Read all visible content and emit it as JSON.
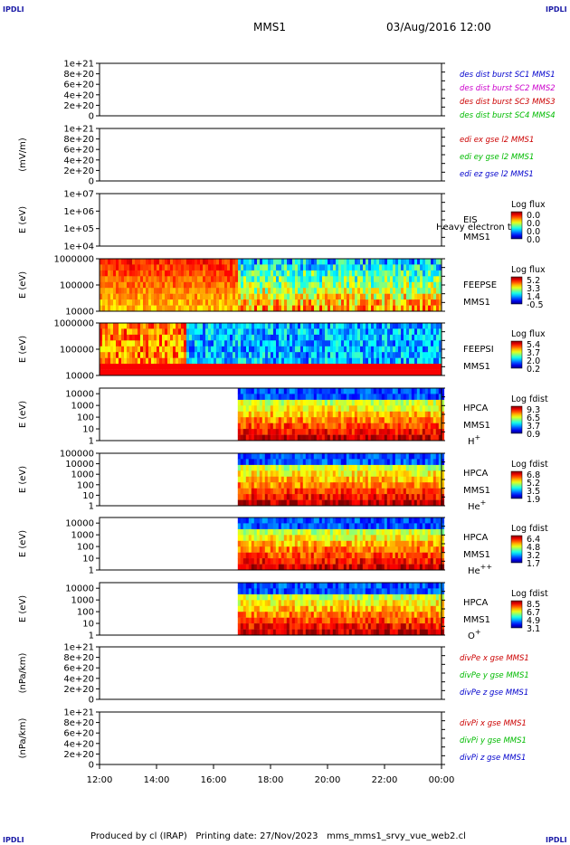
{
  "corners": {
    "tl": "IPDLI",
    "tr": "IPDLI",
    "bl": "IPDLI",
    "br": "IPDLI"
  },
  "header": {
    "mission": "MMS1",
    "datetime": "03/Aug/2016 12:00"
  },
  "footer": {
    "producer": "Produced by cl (IRAP)",
    "printing": "Printing date: 27/Nov/2023",
    "script": "mms_mms1_srvy_vue_web2.cl"
  },
  "colors": {
    "black": "#000000",
    "blue": "#0000cc",
    "magenta": "#cc00cc",
    "red": "#cc0000",
    "green": "#00bb00",
    "dashed": "#000000"
  },
  "chart_data": [
    {
      "type": "line",
      "ylabel": "",
      "y_ticks": [
        "0",
        "2e+20",
        "4e+20",
        "6e+20",
        "8e+20",
        "1e+21"
      ],
      "ylim": [
        0,
        1e+21
      ],
      "legend": [
        {
          "text": "des dist burst SC1 MMS1",
          "color": "#0000cc"
        },
        {
          "text": "des dist burst SC2 MMS2",
          "color": "#cc00cc"
        },
        {
          "text": "des dist burst SC3 MMS3",
          "color": "#cc0000"
        },
        {
          "text": "des dist burst SC4 MMS4",
          "color": "#00bb00"
        }
      ],
      "series": []
    },
    {
      "type": "line",
      "ylabel": "(mV/m)",
      "y_ticks": [
        "0",
        "2e+20",
        "4e+20",
        "6e+20",
        "8e+20",
        "1e+21"
      ],
      "ylim": [
        0,
        1e+21
      ],
      "legend": [
        {
          "text": "edi ex gse l2 MMS1",
          "color": "#cc0000"
        },
        {
          "text": "edi ey gse l2 MMS1",
          "color": "#00bb00"
        },
        {
          "text": "edi ez gse l2 MMS1",
          "color": "#0000cc"
        }
      ],
      "series": []
    },
    {
      "type": "heatmap",
      "ylabel": "E (eV)",
      "y_ticks": [
        "1e+04",
        "1e+05",
        "1e+06",
        "1e+07"
      ],
      "ylim": [
        10000,
        10000000
      ],
      "scale": "log",
      "instrument": [
        "EIS",
        "MMS1"
      ],
      "overlay_text": "Heavy electron to",
      "colorbar": {
        "title": "Log flux",
        "ticks": [
          "0.0",
          "0.0",
          "0.0",
          "0.0"
        ]
      },
      "coverage": []
    },
    {
      "type": "heatmap",
      "ylabel": "E (eV)",
      "y_ticks": [
        "10000",
        "100000",
        "1000000"
      ],
      "ylim": [
        10000,
        1000000
      ],
      "scale": "log",
      "instrument": [
        "FEEPSE",
        "MMS1"
      ],
      "colorbar": {
        "title": "Log flux",
        "ticks": [
          "5.2",
          "3.3",
          "1.4",
          "-0.5"
        ]
      },
      "coverage": [
        [
          12.0,
          24.0
        ]
      ]
    },
    {
      "type": "heatmap",
      "ylabel": "E (eV)",
      "y_ticks": [
        "10000",
        "100000",
        "1000000"
      ],
      "ylim": [
        10000,
        1000000
      ],
      "scale": "log",
      "instrument": [
        "FEEPSI",
        "MMS1"
      ],
      "colorbar": {
        "title": "Log flux",
        "ticks": [
          "5.4",
          "3.7",
          "2.0",
          "0.2"
        ]
      },
      "coverage": [
        [
          12.0,
          24.0
        ]
      ]
    },
    {
      "type": "heatmap",
      "ylabel": "E (eV)",
      "y_ticks": [
        "1",
        "10",
        "100",
        "1000",
        "10000"
      ],
      "ylim": [
        1,
        30000
      ],
      "scale": "log",
      "instrument": [
        "HPCA",
        "MMS1"
      ],
      "species": "H",
      "species_sup": "+",
      "colorbar": {
        "title": "Log fdist",
        "ticks": [
          "9.3",
          "6.5",
          "3.7",
          "0.9"
        ]
      },
      "coverage": [
        [
          16.85,
          24.0
        ]
      ]
    },
    {
      "type": "heatmap",
      "ylabel": "E (eV)",
      "y_ticks": [
        "1",
        "10",
        "100",
        "1000",
        "10000",
        "100000"
      ],
      "ylim": [
        1,
        100000
      ],
      "scale": "log",
      "instrument": [
        "HPCA",
        "MMS1"
      ],
      "species": "He",
      "species_sup": "+",
      "colorbar": {
        "title": "Log fdist",
        "ticks": [
          "6.8",
          "5.2",
          "3.5",
          "1.9"
        ]
      },
      "coverage": [
        [
          16.85,
          24.0
        ]
      ]
    },
    {
      "type": "heatmap",
      "ylabel": "E (eV)",
      "y_ticks": [
        "1",
        "10",
        "100",
        "1000",
        "10000"
      ],
      "ylim": [
        1,
        30000
      ],
      "scale": "log",
      "instrument": [
        "HPCA",
        "MMS1"
      ],
      "species": "He",
      "species_sup": "++",
      "colorbar": {
        "title": "Log fdist",
        "ticks": [
          "6.4",
          "4.8",
          "3.2",
          "1.7"
        ]
      },
      "coverage": [
        [
          16.85,
          24.0
        ]
      ]
    },
    {
      "type": "heatmap",
      "ylabel": "E (eV)",
      "y_ticks": [
        "1",
        "10",
        "100",
        "1000",
        "10000"
      ],
      "ylim": [
        1,
        30000
      ],
      "scale": "log",
      "instrument": [
        "HPCA",
        "MMS1"
      ],
      "species": "O",
      "species_sup": "+",
      "colorbar": {
        "title": "Log fdist",
        "ticks": [
          "8.5",
          "6.7",
          "4.9",
          "3.1"
        ]
      },
      "coverage": [
        [
          16.85,
          24.0
        ]
      ]
    },
    {
      "type": "line",
      "ylabel": "(nPa/km)",
      "y_ticks": [
        "0",
        "2e+20",
        "4e+20",
        "6e+20",
        "8e+20",
        "1e+21"
      ],
      "ylim": [
        0,
        1e+21
      ],
      "legend": [
        {
          "text": "divPe x gse MMS1",
          "color": "#cc0000"
        },
        {
          "text": "divPe y gse MMS1",
          "color": "#00bb00"
        },
        {
          "text": "divPe z gse MMS1",
          "color": "#0000cc"
        }
      ],
      "series": []
    },
    {
      "type": "line",
      "ylabel": "(nPa/km)",
      "y_ticks": [
        "0",
        "2e+20",
        "4e+20",
        "6e+20",
        "8e+20",
        "1e+21"
      ],
      "ylim": [
        0,
        1e+21
      ],
      "legend": [
        {
          "text": "divPi x gse MMS1",
          "color": "#cc0000"
        },
        {
          "text": "divPi y gse MMS1",
          "color": "#00bb00"
        },
        {
          "text": "divPi z gse MMS1",
          "color": "#0000cc"
        }
      ],
      "series": []
    }
  ],
  "x_axis": {
    "tick_labels": [
      "12:00",
      "14:00",
      "16:00",
      "18:00",
      "20:00",
      "22:00",
      "00:00"
    ],
    "tick_hours": [
      12,
      14,
      16,
      18,
      20,
      22,
      24
    ],
    "xlim": [
      12,
      24
    ]
  }
}
